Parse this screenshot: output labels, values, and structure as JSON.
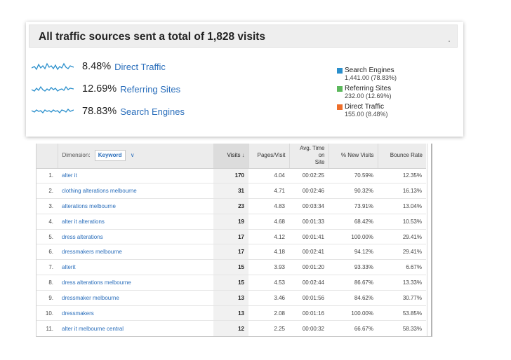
{
  "summary": {
    "title": "All traffic sources sent a total of 1,828 visits",
    "sources": [
      {
        "pct": "8.48%",
        "label": "Direct Traffic",
        "sparkline_icon": "sparkline-icon"
      },
      {
        "pct": "12.69%",
        "label": "Referring Sites",
        "sparkline_icon": "sparkline-icon"
      },
      {
        "pct": "78.83%",
        "label": "Search Engines",
        "sparkline_icon": "sparkline-icon"
      }
    ],
    "legend": [
      {
        "name": "Search Engines",
        "value": "1,441.00 (78.83%)",
        "color": "#2a8fcc"
      },
      {
        "name": "Referring Sites",
        "value": "232.00 (12.69%)",
        "color": "#5cb85c"
      },
      {
        "name": "Direct Traffic",
        "value": "155.00 (8.48%)",
        "color": "#ee6e2a"
      }
    ],
    "colors": {
      "sparkline": "#2a8fcc",
      "link": "#2a6ebb"
    }
  },
  "table": {
    "dimension_label": "Dimension:",
    "dimension_value": "Keyword",
    "headers": {
      "visits": "Visits",
      "pages_visit": "Pages/Visit",
      "avg_time_line1": "Avg. Time on",
      "avg_time_line2": "Site",
      "new_visits": "% New Visits",
      "bounce_rate": "Bounce Rate"
    },
    "rows": [
      {
        "idx": "1.",
        "keyword": "alter it",
        "visits": "170",
        "pages": "4.04",
        "time": "00:02:25",
        "new": "70.59%",
        "bounce": "12.35%"
      },
      {
        "idx": "2.",
        "keyword": "clothing alterations melbourne",
        "visits": "31",
        "pages": "4.71",
        "time": "00:02:46",
        "new": "90.32%",
        "bounce": "16.13%"
      },
      {
        "idx": "3.",
        "keyword": "alterations melbourne",
        "visits": "23",
        "pages": "4.83",
        "time": "00:03:34",
        "new": "73.91%",
        "bounce": "13.04%"
      },
      {
        "idx": "4.",
        "keyword": "alter it alterations",
        "visits": "19",
        "pages": "4.68",
        "time": "00:01:33",
        "new": "68.42%",
        "bounce": "10.53%"
      },
      {
        "idx": "5.",
        "keyword": "dress alterations",
        "visits": "17",
        "pages": "4.12",
        "time": "00:01:41",
        "new": "100.00%",
        "bounce": "29.41%"
      },
      {
        "idx": "6.",
        "keyword": "dressmakers melbourne",
        "visits": "17",
        "pages": "4.18",
        "time": "00:02:41",
        "new": "94.12%",
        "bounce": "29.41%"
      },
      {
        "idx": "7.",
        "keyword": "alterit",
        "visits": "15",
        "pages": "3.93",
        "time": "00:01:20",
        "new": "93.33%",
        "bounce": "6.67%"
      },
      {
        "idx": "8.",
        "keyword": "dress alterations melbourne",
        "visits": "15",
        "pages": "4.53",
        "time": "00:02:44",
        "new": "86.67%",
        "bounce": "13.33%"
      },
      {
        "idx": "9.",
        "keyword": "dressmaker melbourne",
        "visits": "13",
        "pages": "3.46",
        "time": "00:01:56",
        "new": "84.62%",
        "bounce": "30.77%"
      },
      {
        "idx": "10.",
        "keyword": "dressmakers",
        "visits": "13",
        "pages": "2.08",
        "time": "00:01:16",
        "new": "100.00%",
        "bounce": "53.85%"
      },
      {
        "idx": "11.",
        "keyword": "alter it melbourne central",
        "visits": "12",
        "pages": "2.25",
        "time": "00:00:32",
        "new": "66.67%",
        "bounce": "58.33%"
      }
    ]
  }
}
